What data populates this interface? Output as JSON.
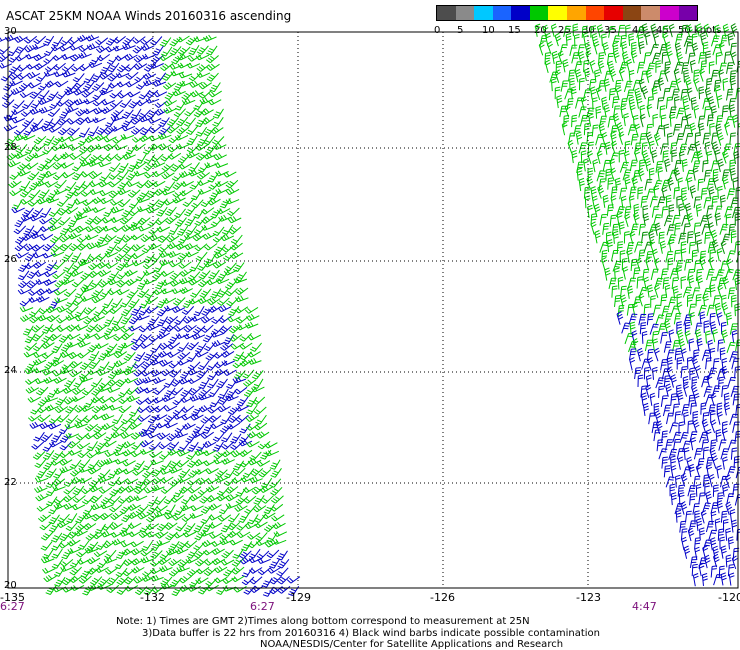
{
  "title": "ASCAT 25KM NOAA Winds 20160316 ascending",
  "legend": {
    "colors": [
      "#4d4d4d",
      "#8a8a8a",
      "#00c8ff",
      "#1a64ff",
      "#0000c8",
      "#00c800",
      "#ffff00",
      "#ffa500",
      "#ff4500",
      "#e60000",
      "#8b4513",
      "#cc8b6b",
      "#cc00cc",
      "#7700aa"
    ],
    "labels": [
      "0",
      "5",
      "10",
      "15",
      "20",
      "25",
      "30",
      "35",
      "40",
      "45",
      "50 knots"
    ]
  },
  "y_ticks": [
    "30",
    "28",
    "26",
    "24",
    "22",
    "20"
  ],
  "x_ticks": [
    "-135",
    "-132",
    "-129",
    "-126",
    "-123",
    "-120"
  ],
  "times": [
    "6:27",
    "6:27",
    "4:47"
  ],
  "notes": [
    "Note: 1) Times are GMT 2)Times along bottom correspond to measurement at 25N",
    "3)Data buffer is 22 hrs from 20160316 4) Black wind barbs indicate possible contamination",
    "NOAA/NESDIS/Center for Satellite Applications and Research"
  ],
  "barb_colors": {
    "blue": "#0000c8",
    "green": "#00c800",
    "darkgreen": "#008c00"
  }
}
